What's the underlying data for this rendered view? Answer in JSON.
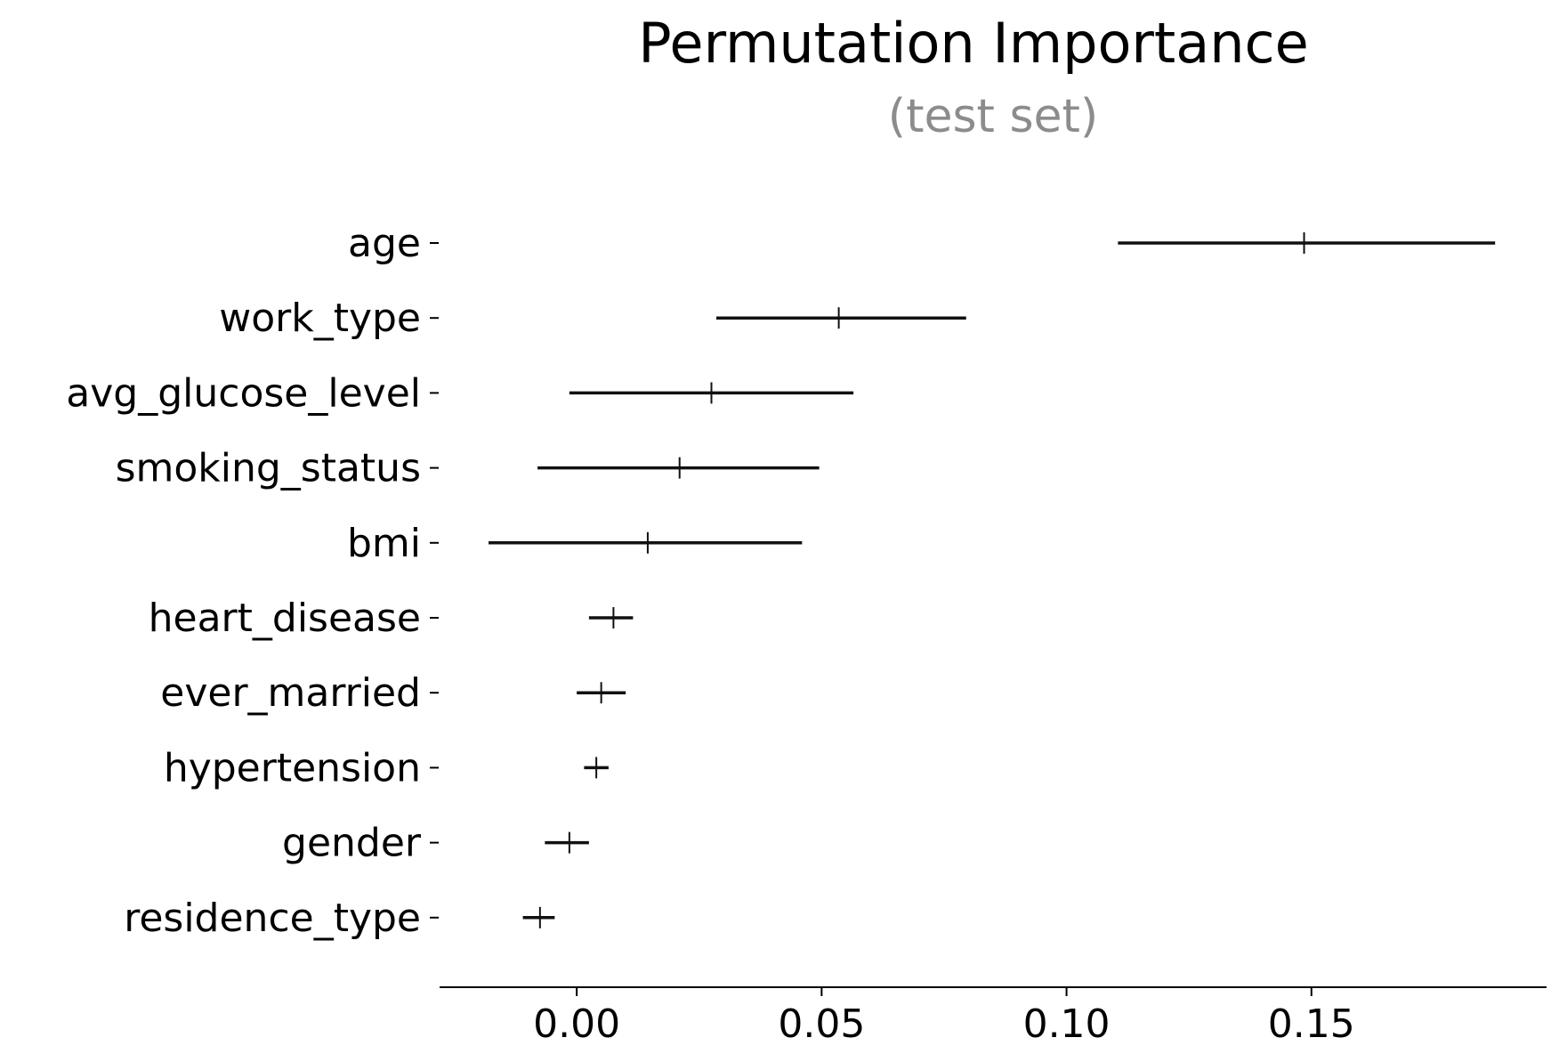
{
  "chart_data": {
    "type": "errorbar",
    "title": "Permutation Importance",
    "subtitle": "(test set)",
    "xlabel": "",
    "ylabel": "",
    "xlim": [
      -0.028,
      0.198
    ],
    "xticks": [
      0.0,
      0.05,
      0.1,
      0.15
    ],
    "xtick_labels": [
      "0.00",
      "0.05",
      "0.10",
      "0.15"
    ],
    "grid": false,
    "colors": {
      "line": "#111111",
      "axis": "#000000",
      "subtitle": "#8c8c8c"
    },
    "features": [
      {
        "name": "age",
        "mean": 0.1485,
        "low": 0.1105,
        "high": 0.1875
      },
      {
        "name": "work_type",
        "mean": 0.0535,
        "low": 0.0285,
        "high": 0.0795
      },
      {
        "name": "avg_glucose_level",
        "mean": 0.0275,
        "low": -0.0015,
        "high": 0.0565
      },
      {
        "name": "smoking_status",
        "mean": 0.021,
        "low": -0.008,
        "high": 0.0495
      },
      {
        "name": "bmi",
        "mean": 0.0145,
        "low": -0.018,
        "high": 0.046
      },
      {
        "name": "heart_disease",
        "mean": 0.0075,
        "low": 0.0025,
        "high": 0.0115
      },
      {
        "name": "ever_married",
        "mean": 0.005,
        "low": 0.0,
        "high": 0.01
      },
      {
        "name": "hypertension",
        "mean": 0.004,
        "low": 0.0015,
        "high": 0.0065
      },
      {
        "name": "gender",
        "mean": -0.0015,
        "low": -0.0065,
        "high": 0.0025
      },
      {
        "name": "residence_type",
        "mean": -0.0075,
        "low": -0.011,
        "high": -0.0045
      }
    ]
  }
}
